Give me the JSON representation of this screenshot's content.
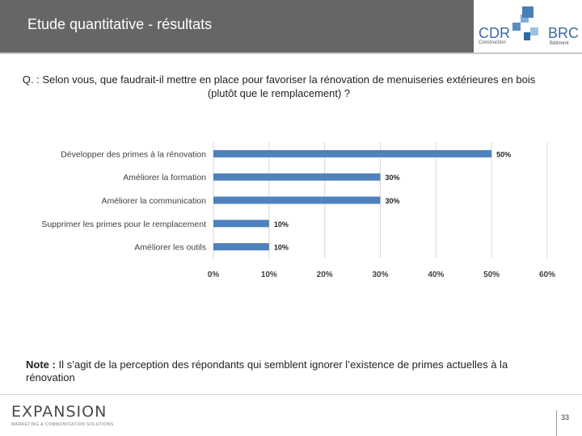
{
  "header": {
    "title": "Etude quantitative - résultats"
  },
  "logo": {
    "cdr": "CDR",
    "cdr_sub": "Construction",
    "brc": "BRC",
    "brc_sub": "Bâtiment"
  },
  "question": "Q. : Selon vous, que faudrait-il mettre en place pour favoriser la rénovation de menuiseries extérieures en bois (plutôt que le remplacement) ?",
  "chart_data": {
    "type": "bar",
    "orientation": "horizontal",
    "categories": [
      "Développer des primes à la rénovation",
      "Améliorer la formation",
      "Améliorer la communication",
      "Supprimer les primes pour le remplacement",
      "Améliorer les outils"
    ],
    "values": [
      50,
      30,
      30,
      10,
      10
    ],
    "data_labels": [
      "50%",
      "30%",
      "30%",
      "10%",
      "10%"
    ],
    "x_ticks": [
      "0%",
      "10%",
      "20%",
      "30%",
      "40%",
      "50%",
      "60%"
    ],
    "xlim": [
      0,
      60
    ],
    "grid": true,
    "bar_color": "#4f81bd"
  },
  "note": {
    "label": "Note :",
    "text": "Il s’agit de la perception des répondants qui semblent ignorer l’existence de primes actuelles à la rénovation"
  },
  "footer": {
    "brand": "EXPANSION",
    "tagline": "MARKETING & COMMUNICATION SOLUTIONS",
    "page": "33"
  }
}
